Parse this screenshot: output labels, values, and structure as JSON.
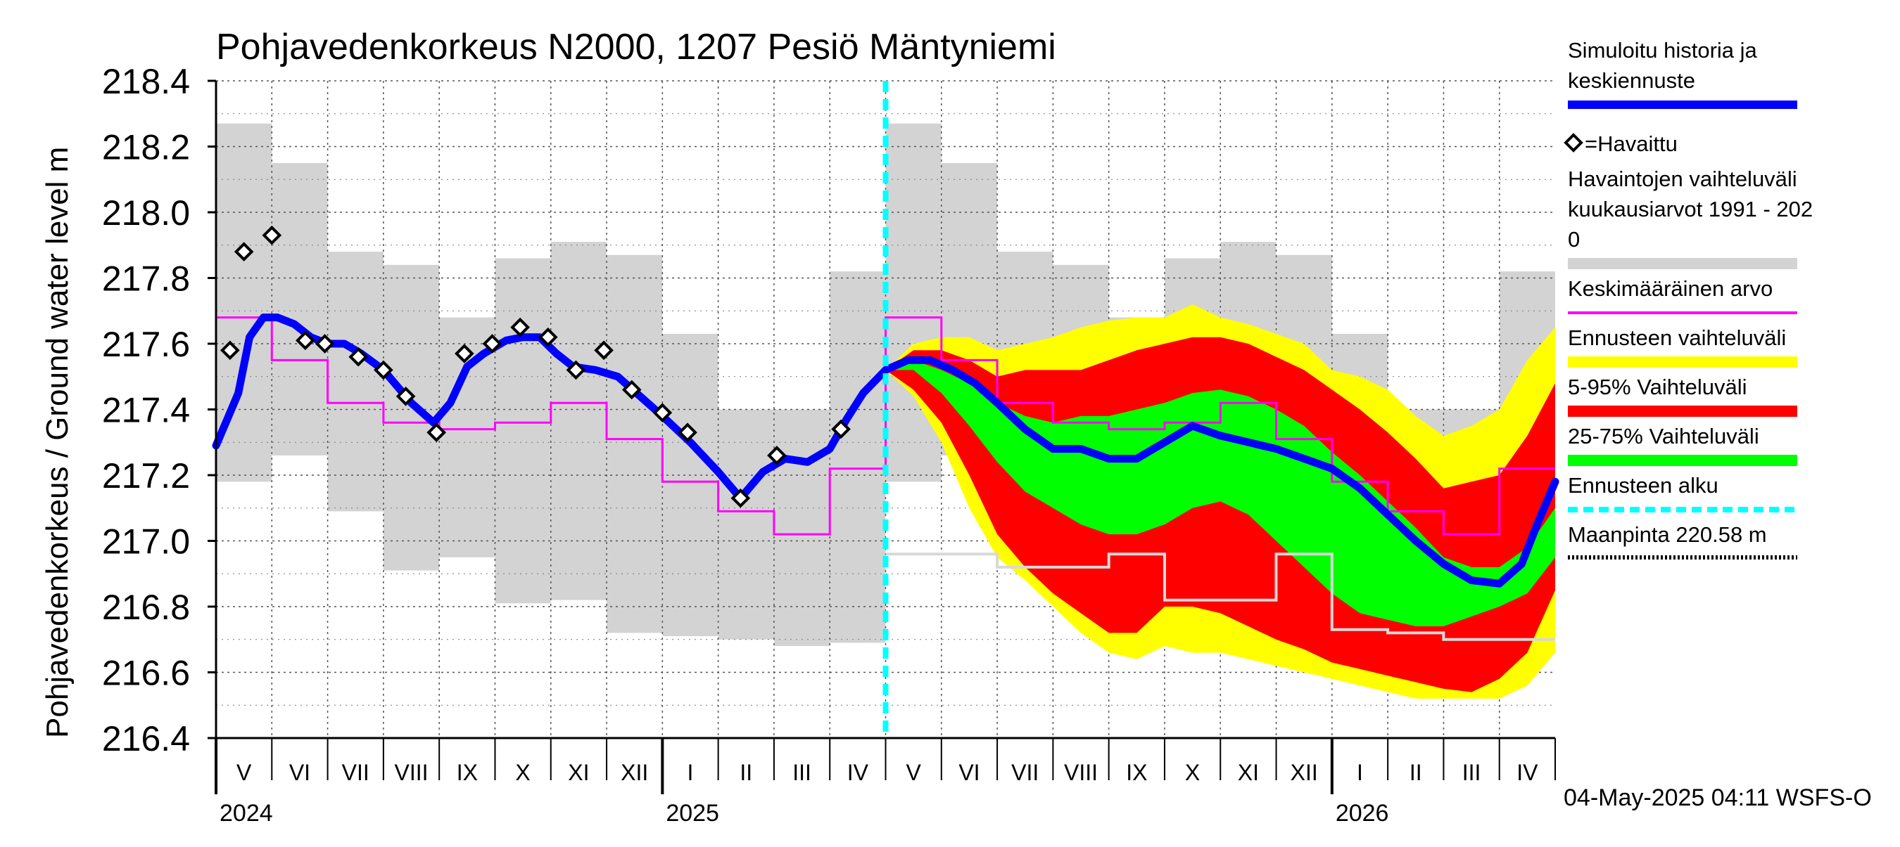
{
  "chart_data": {
    "type": "area",
    "title": "Pohjavedenkorkeus N2000, 1207 Pesiö Mäntyniemi",
    "ylabel": "Pohjavedenkorkeus / Ground water level   m",
    "ylim": [
      216.4,
      218.4
    ],
    "yticks": [
      "216.4",
      "216.6",
      "216.8",
      "217.0",
      "217.2",
      "217.4",
      "217.6",
      "217.8",
      "218.0",
      "218.2",
      "218.4"
    ],
    "x_months": [
      "V",
      "VI",
      "VII",
      "VIII",
      "IX",
      "X",
      "XI",
      "XII",
      "I",
      "II",
      "III",
      "IV",
      "V",
      "VI",
      "VII",
      "VIII",
      "IX",
      "X",
      "XI",
      "XII",
      "I",
      "II",
      "III",
      "IV"
    ],
    "x_years": [
      {
        "label": "2024",
        "month_index": 0
      },
      {
        "label": "2025",
        "month_index": 8
      },
      {
        "label": "2026",
        "month_index": 20
      }
    ],
    "forecast_start_month": 12,
    "footer": "04-May-2025 04:11 WSFS-O",
    "legend": [
      {
        "label": "Simuloitu historia ja",
        "label2": "keskiennuste",
        "color": "#0000ff",
        "kind": "line"
      },
      {
        "label": "=Havaittu",
        "kind": "marker"
      },
      {
        "label": "Havaintojen vaihteluväli",
        "label2": " kuukausiarvot 1991 - 202",
        "label3": "0",
        "color": "#d3d3d3",
        "kind": "band"
      },
      {
        "label": "Keskimääräinen arvo",
        "color": "#ff00ff",
        "kind": "line"
      },
      {
        "label": "Ennusteen vaihteluväli",
        "color": "#ffff00",
        "kind": "band"
      },
      {
        "label": "5-95% Vaihteluväli",
        "color": "#ff0000",
        "kind": "band"
      },
      {
        "label": "25-75% Vaihteluväli",
        "color": "#00ff00",
        "kind": "band"
      },
      {
        "label": "Ennusteen alku",
        "color": "#00ffff",
        "kind": "dash"
      },
      {
        "label": "Maanpinta 220.58 m",
        "color": "#000000",
        "kind": "dot"
      }
    ],
    "monthly_range": {
      "max": [
        218.27,
        218.15,
        217.88,
        217.84,
        217.68,
        217.86,
        217.91,
        217.87,
        217.63,
        217.4,
        217.4,
        217.82
      ],
      "min": [
        217.18,
        217.26,
        217.09,
        216.91,
        216.95,
        216.81,
        216.82,
        216.72,
        216.71,
        216.7,
        216.68,
        216.69
      ]
    },
    "monthly_mean": [
      217.68,
      217.55,
      217.42,
      217.36,
      217.34,
      217.36,
      217.42,
      217.31,
      217.18,
      217.09,
      217.02,
      217.22
    ],
    "observed": [
      {
        "x": 0.25,
        "y": 217.58
      },
      {
        "x": 0.5,
        "y": 217.88
      },
      {
        "x": 1.0,
        "y": 217.93
      },
      {
        "x": 1.6,
        "y": 217.61
      },
      {
        "x": 1.95,
        "y": 217.6
      },
      {
        "x": 2.55,
        "y": 217.56
      },
      {
        "x": 3.0,
        "y": 217.52
      },
      {
        "x": 3.4,
        "y": 217.44
      },
      {
        "x": 3.95,
        "y": 217.33
      },
      {
        "x": 4.45,
        "y": 217.57
      },
      {
        "x": 4.95,
        "y": 217.6
      },
      {
        "x": 5.45,
        "y": 217.65
      },
      {
        "x": 5.95,
        "y": 217.62
      },
      {
        "x": 6.45,
        "y": 217.52
      },
      {
        "x": 6.95,
        "y": 217.58
      },
      {
        "x": 7.45,
        "y": 217.46
      },
      {
        "x": 8.0,
        "y": 217.39
      },
      {
        "x": 8.45,
        "y": 217.33
      },
      {
        "x": 9.4,
        "y": 217.13
      },
      {
        "x": 10.05,
        "y": 217.26
      },
      {
        "x": 11.2,
        "y": 217.34
      }
    ],
    "simulated": [
      [
        0.0,
        217.29
      ],
      [
        0.2,
        217.37
      ],
      [
        0.4,
        217.45
      ],
      [
        0.6,
        217.62
      ],
      [
        0.85,
        217.68
      ],
      [
        1.1,
        217.68
      ],
      [
        1.4,
        217.66
      ],
      [
        1.7,
        217.62
      ],
      [
        2.0,
        217.6
      ],
      [
        2.3,
        217.6
      ],
      [
        2.6,
        217.57
      ],
      [
        3.0,
        217.52
      ],
      [
        3.5,
        217.42
      ],
      [
        3.9,
        217.36
      ],
      [
        4.2,
        217.42
      ],
      [
        4.5,
        217.53
      ],
      [
        4.8,
        217.57
      ],
      [
        5.2,
        217.61
      ],
      [
        5.5,
        217.62
      ],
      [
        5.8,
        217.62
      ],
      [
        6.1,
        217.57
      ],
      [
        6.4,
        217.53
      ],
      [
        6.8,
        217.52
      ],
      [
        7.2,
        217.5
      ],
      [
        7.6,
        217.44
      ],
      [
        8.0,
        217.38
      ],
      [
        8.5,
        217.3
      ],
      [
        9.0,
        217.21
      ],
      [
        9.4,
        217.13
      ],
      [
        9.8,
        217.21
      ],
      [
        10.2,
        217.25
      ],
      [
        10.6,
        217.24
      ],
      [
        11.0,
        217.28
      ],
      [
        11.3,
        217.37
      ],
      [
        11.6,
        217.45
      ],
      [
        12.0,
        217.52
      ],
      [
        12.4,
        217.55
      ],
      [
        12.8,
        217.55
      ],
      [
        13.2,
        217.52
      ],
      [
        13.6,
        217.48
      ],
      [
        14.0,
        217.42
      ],
      [
        14.5,
        217.34
      ],
      [
        15.0,
        217.28
      ],
      [
        15.5,
        217.28
      ],
      [
        16.0,
        217.25
      ],
      [
        16.5,
        217.25
      ],
      [
        17.0,
        217.3
      ],
      [
        17.5,
        217.35
      ],
      [
        18.0,
        217.32
      ],
      [
        18.5,
        217.3
      ],
      [
        19.0,
        217.28
      ],
      [
        19.5,
        217.25
      ],
      [
        20.0,
        217.22
      ],
      [
        20.5,
        217.16
      ],
      [
        21.0,
        217.08
      ],
      [
        21.5,
        217.0
      ],
      [
        22.0,
        216.93
      ],
      [
        22.5,
        216.88
      ],
      [
        23.0,
        216.87
      ],
      [
        23.4,
        216.93
      ],
      [
        23.7,
        217.06
      ],
      [
        24.0,
        217.18
      ]
    ],
    "forecast": {
      "x": [
        12.0,
        12.5,
        13.0,
        13.5,
        14.0,
        14.5,
        15.0,
        15.5,
        16.0,
        16.5,
        17.0,
        17.5,
        18.0,
        18.5,
        19.0,
        19.5,
        20.0,
        20.5,
        21.0,
        21.5,
        22.0,
        22.5,
        23.0,
        23.5,
        24.0
      ],
      "ens_max": [
        217.52,
        217.6,
        217.62,
        217.62,
        217.58,
        217.6,
        217.62,
        217.65,
        217.67,
        217.68,
        217.68,
        217.72,
        217.68,
        217.66,
        217.63,
        217.6,
        217.52,
        217.5,
        217.46,
        217.38,
        217.32,
        217.35,
        217.4,
        217.55,
        217.65
      ],
      "p95": [
        217.52,
        217.58,
        217.58,
        217.55,
        217.5,
        217.52,
        217.52,
        217.52,
        217.55,
        217.58,
        217.6,
        217.62,
        217.62,
        217.6,
        217.56,
        217.52,
        217.46,
        217.4,
        217.33,
        217.25,
        217.16,
        217.18,
        217.2,
        217.32,
        217.48
      ],
      "p75": [
        217.52,
        217.55,
        217.52,
        217.48,
        217.42,
        217.38,
        217.36,
        217.38,
        217.38,
        217.4,
        217.42,
        217.45,
        217.46,
        217.44,
        217.4,
        217.35,
        217.27,
        217.2,
        217.12,
        217.04,
        216.95,
        216.92,
        216.92,
        216.98,
        217.1
      ],
      "p25": [
        217.52,
        217.52,
        217.45,
        217.35,
        217.24,
        217.15,
        217.1,
        217.05,
        217.02,
        217.02,
        217.05,
        217.1,
        217.12,
        217.08,
        217.0,
        216.92,
        216.84,
        216.78,
        216.76,
        216.74,
        216.74,
        216.77,
        216.8,
        216.84,
        216.95
      ],
      "p5": [
        217.52,
        217.46,
        217.36,
        217.2,
        217.02,
        216.92,
        216.84,
        216.78,
        216.72,
        216.72,
        216.8,
        216.8,
        216.78,
        216.74,
        216.7,
        216.67,
        216.63,
        216.61,
        216.59,
        216.57,
        216.55,
        216.54,
        216.58,
        216.66,
        216.85
      ],
      "ens_min": [
        217.52,
        217.44,
        217.3,
        217.1,
        216.95,
        216.88,
        216.8,
        216.72,
        216.66,
        216.64,
        216.68,
        216.66,
        216.66,
        216.64,
        216.62,
        216.6,
        216.58,
        216.56,
        216.54,
        216.52,
        216.52,
        216.52,
        216.52,
        216.56,
        216.66
      ]
    },
    "forecast_light_line": [
      216.96,
      216.96,
      216.92,
      216.92,
      216.96,
      216.82,
      216.82,
      216.96,
      216.73,
      216.72,
      216.7,
      216.7
    ]
  }
}
